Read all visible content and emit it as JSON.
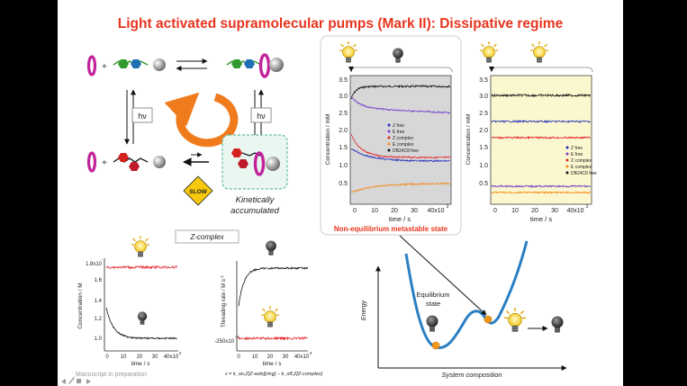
{
  "slide": {
    "title": "Light activated supramolecular pumps (Mark II): Dissipative regime",
    "scheme": {
      "hv_label": "hν",
      "slow_label": "SLOW",
      "kinetic_label_1": "Kinetically",
      "kinetic_label_2": "accumulated"
    },
    "center_chart": {
      "ylabel": "Concentration / mM",
      "xlabel": "time / s",
      "x_exponent_label": "40x10",
      "x_exponent_sup": "3",
      "y_ticks": [
        "3.5",
        "3.0",
        "2.5",
        "2.0",
        "1.5",
        "1.0",
        "0.5"
      ],
      "x_ticks": [
        "0",
        "10",
        "20",
        "30",
        "40x10"
      ],
      "legend": [
        "Z free",
        "E free",
        "Z complex",
        "E complex",
        "DB24C8 free"
      ],
      "caption": "Non-equilibrium metastable state"
    },
    "right_chart": {
      "ylabel": "Concentration / mM",
      "xlabel": "time / s",
      "y_ticks": [
        "3.5",
        "3.0",
        "2.5",
        "2.0",
        "1.5",
        "1.0",
        "0.5"
      ],
      "x_ticks": [
        "0",
        "10",
        "20",
        "30",
        "40x10"
      ],
      "x_exponent_sup": "3",
      "legend": [
        "Z free",
        "E free",
        "Z complex",
        "E complex",
        "DB24C8 free"
      ]
    },
    "zcomplex_label": "Z-complex",
    "conc_chart": {
      "ylabel": "Concentration / M",
      "xlabel": "time / s",
      "y_ticks": [
        "1.8x10",
        "1.6",
        "1.4",
        "1.2",
        "1.0"
      ],
      "y_top_exponent": "-3",
      "x_ticks": [
        "0",
        "10",
        "20",
        "30",
        "40x10"
      ],
      "x_exponent_sup": "3"
    },
    "rate_chart": {
      "ylabel": "Threading rate / M s",
      "ylabel_sup": "-1",
      "xlabel": "time / s",
      "y_bottom_label": "-250x10",
      "y_bottom_exponent": "-9",
      "x_ticks": [
        "0",
        "10",
        "20",
        "30",
        "40x10"
      ],
      "x_exponent_sup": "3"
    },
    "rate_equation": "v = k_on,Z[Z-axle][ring] − k_off,Z[Z-complex]",
    "energy": {
      "ylabel": "Energy",
      "xlabel": "System composition",
      "equilibrium_label_1": "Equilibrium",
      "equilibrium_label_2": "state"
    },
    "footer": "Manuscript in preparation",
    "colors": {
      "title": "#e8351f",
      "chart_gray_bg": "#d7d7d7",
      "chart_yellow_bg": "#fbf7cf",
      "energy_curve": "#2a7fc4",
      "orange_arrow": "#f07b1c"
    }
  }
}
